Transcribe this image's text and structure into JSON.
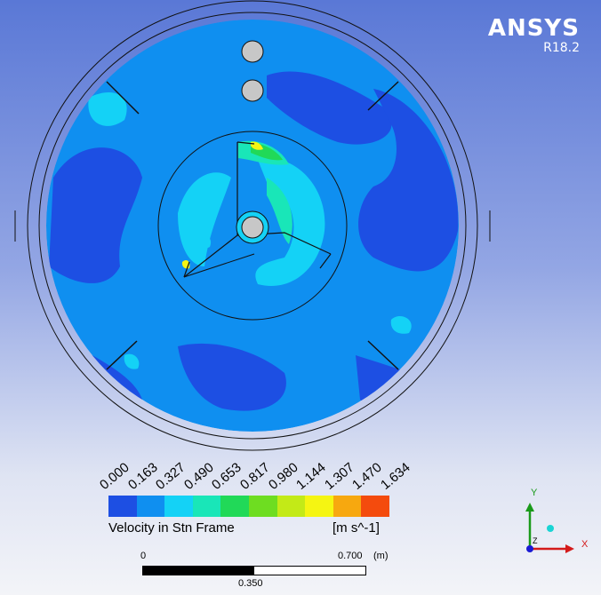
{
  "brand": {
    "name": "ANSYS",
    "version": "R18.2"
  },
  "legend": {
    "ticks": [
      "0.000",
      "0.163",
      "0.327",
      "0.490",
      "0.653",
      "0.817",
      "0.980",
      "1.144",
      "1.307",
      "1.470",
      "1.634"
    ],
    "colors": [
      "#1d4fe3",
      "#0f8ff0",
      "#14d2f6",
      "#19e6b8",
      "#21d958",
      "#6edd21",
      "#c3ea17",
      "#f5f512",
      "#f7a80f",
      "#f44b0d"
    ],
    "title": "Velocity in Stn Frame",
    "unit": "[m s^-1]"
  },
  "scale_bar": {
    "start": "0",
    "end": "0.700",
    "unit": "(m)",
    "mid": "0.350"
  },
  "triad": {
    "x": "X",
    "y": "Y",
    "z": "Z"
  },
  "contour_colors": {
    "dark": "#1d4fe3",
    "mid": "#0f8ff0",
    "light": "#14d2f6",
    "teal": "#19e6b8",
    "green": "#21d958",
    "yellow": "#f5f512"
  }
}
